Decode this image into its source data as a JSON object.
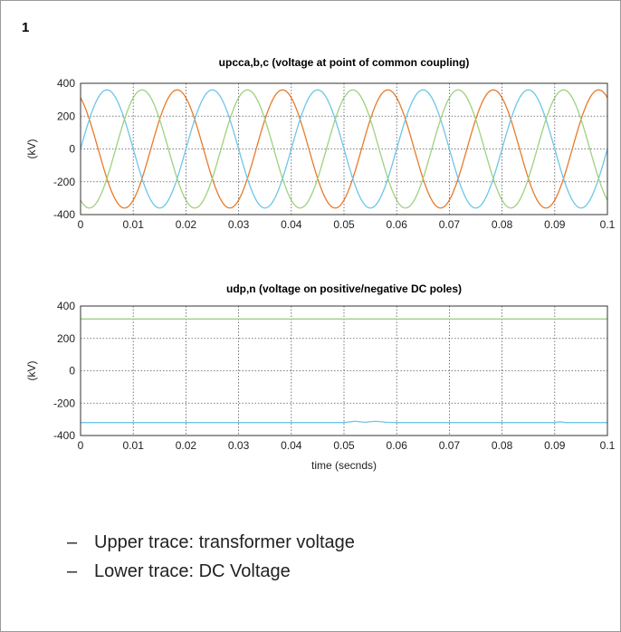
{
  "slide": {
    "number": "1",
    "bullets": [
      "Upper trace: transformer voltage",
      "Lower trace: DC Voltage"
    ]
  },
  "colors": {
    "phase_a": "#e87b2a",
    "phase_b": "#6ec6e6",
    "phase_c": "#9fd17f",
    "grid": "#555555",
    "axis": "#333333"
  },
  "chart_data": [
    {
      "type": "line",
      "title": "upcca,b,c (voltage at point of common coupling)",
      "xlabel": "",
      "ylabel": "(kV)",
      "xlim": [
        0,
        0.1
      ],
      "ylim": [
        -400,
        400
      ],
      "xticks": [
        "0",
        "0.01",
        "0.02",
        "0.03",
        "0.04",
        "0.05",
        "0.06",
        "0.07",
        "0.08",
        "0.09",
        "0.1"
      ],
      "yticks": [
        "400",
        "200",
        "0",
        "-200",
        "-400"
      ],
      "grid": true,
      "series": [
        {
          "color": "#e87b2a",
          "amplitude": 360,
          "frequency_hz": 50,
          "phase_deg": 120
        },
        {
          "color": "#6ec6e6",
          "amplitude": 360,
          "frequency_hz": 50,
          "phase_deg": 0
        },
        {
          "color": "#9fd17f",
          "amplitude": 360,
          "frequency_hz": 50,
          "phase_deg": 240
        }
      ]
    },
    {
      "type": "line",
      "title": "udp,n (voltage on positive/negative DC poles)",
      "xlabel": "time (secnds)",
      "ylabel": "(kV)",
      "xlim": [
        0,
        0.1
      ],
      "ylim": [
        -400,
        400
      ],
      "xticks": [
        "0",
        "0.01",
        "0.02",
        "0.03",
        "0.04",
        "0.05",
        "0.06",
        "0.07",
        "0.08",
        "0.09",
        "0.1"
      ],
      "yticks": [
        "400",
        "200",
        "0",
        "-200",
        "-400"
      ],
      "grid": true,
      "series": [
        {
          "color": "#9fd17f",
          "x": [
            0,
            0.1
          ],
          "y": [
            320,
            320
          ]
        },
        {
          "color": "#6ec6e6",
          "x": [
            0,
            0.05,
            0.052,
            0.054,
            0.056,
            0.058,
            0.06,
            0.09,
            0.091,
            0.092,
            0.1
          ],
          "y": [
            -320,
            -320,
            -312,
            -318,
            -312,
            -318,
            -320,
            -320,
            -315,
            -320,
            -320
          ]
        }
      ]
    }
  ]
}
